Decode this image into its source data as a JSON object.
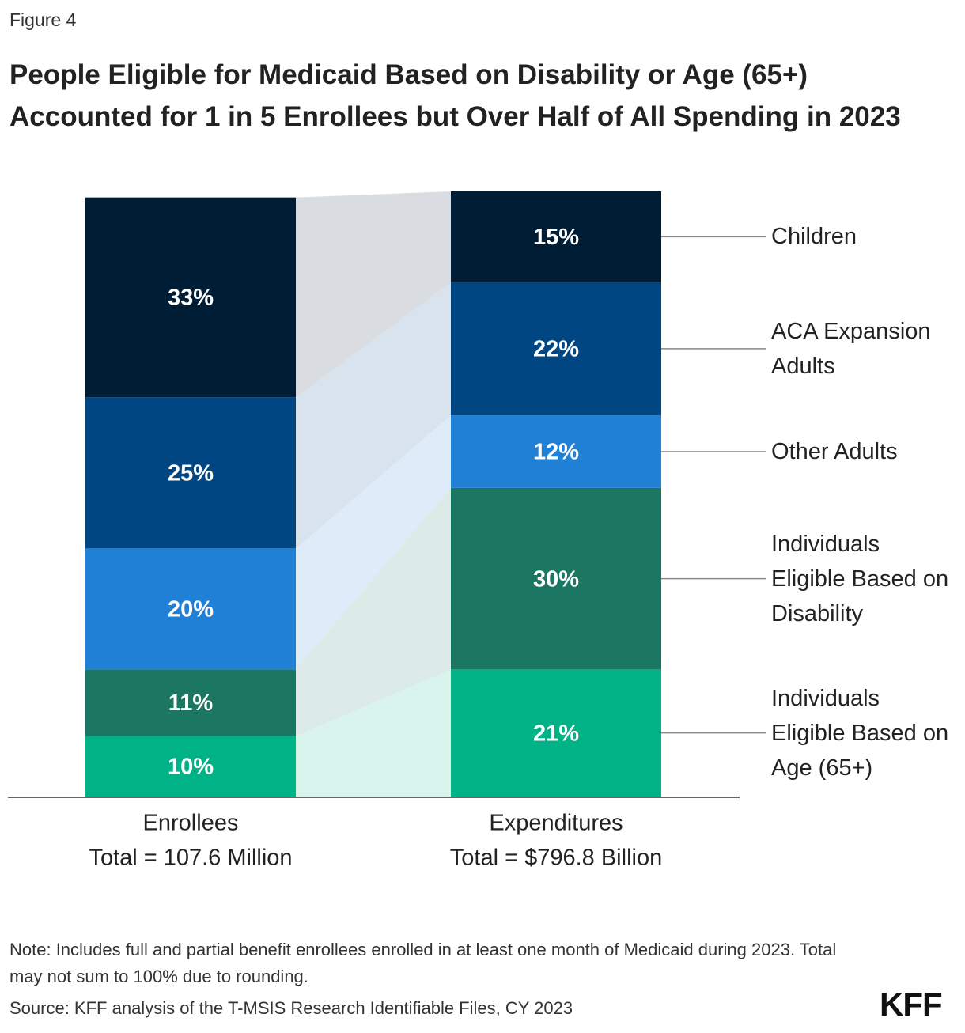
{
  "figure_label": "Figure 4",
  "chart_data": {
    "type": "bar",
    "stacked": true,
    "title": "People Eligible for Medicaid Based on Disability or Age (65+) Accounted for 1 in 5 Enrollees but Over Half of All Spending in 2023",
    "categories": [
      "Enrollees",
      "Expenditures"
    ],
    "category_totals": [
      "Total = 107.6 Million",
      "Total = $796.8 Billion"
    ],
    "ylim": [
      0,
      100
    ],
    "series": [
      {
        "name": "Individuals Eligible Based on Age (65+)",
        "color": "#00b386",
        "values": [
          10,
          21
        ],
        "value_labels": [
          "10%",
          "21%"
        ]
      },
      {
        "name": "Individuals Eligible Based on Disability",
        "color": "#1b7662",
        "values": [
          11,
          30
        ],
        "value_labels": [
          "11%",
          "30%"
        ]
      },
      {
        "name": "Other Adults",
        "color": "#1f80d6",
        "values": [
          20,
          12
        ],
        "value_labels": [
          "20%",
          "12%"
        ]
      },
      {
        "name": "ACA Expansion Adults",
        "color": "#004683",
        "values": [
          25,
          22
        ],
        "value_labels": [
          "25%",
          "22%"
        ]
      },
      {
        "name": "Children",
        "color": "#001d36",
        "values": [
          33,
          15
        ],
        "value_labels": [
          "33%",
          "15%"
        ]
      }
    ]
  },
  "notes": [
    "Note: Includes full and partial benefit enrollees enrolled in at least one month of Medicaid during 2023. Total may not sum to 100% due to rounding.",
    "Source: KFF analysis of the T-MSIS Research Identifiable Files, CY 2023"
  ],
  "logo": "KFF"
}
